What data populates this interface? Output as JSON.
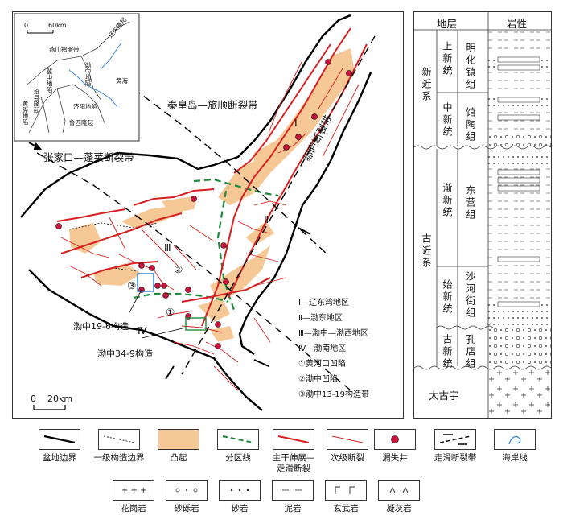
{
  "map": {
    "inset": {
      "scale_zero": "0",
      "scale_end": "60km",
      "regions": [
        "燕山褶皱带",
        "辽东隆起",
        "渤中地陷",
        "黄海",
        "济阳地陷",
        "鲁西隆起",
        "冀中地陷",
        "沧县隆起",
        "黄骅地陷"
      ]
    },
    "fault_labels": {
      "qinhuangdao": "秦皇岛—旅顺断裂带",
      "zhangjiakou": "张家口—蓬莱断裂带",
      "tanlu": "郯庐断裂带"
    },
    "region_numerals": {
      "r1": "Ⅰ",
      "r2": "Ⅱ",
      "r3": "Ⅲ",
      "r4": "Ⅳ"
    },
    "area_numerals": {
      "a1": "①",
      "a2": "②",
      "a3": "③"
    },
    "structures": {
      "s1": "渤中19-6构造",
      "s2": "渤中34-9构造"
    },
    "area_legend": [
      "Ⅰ—辽东湾地区",
      "Ⅱ—渤东地区",
      "Ⅲ—渤中—渤西地区",
      "Ⅳ—渤南地区",
      "①黄河口凹陷",
      "②渤中凹陷",
      "③渤中13-19构造带"
    ],
    "scale": {
      "zero": "0",
      "end": "20km"
    }
  },
  "strat": {
    "header": {
      "strata": "地层",
      "lithology": "岩性"
    },
    "systems": {
      "neogene": "新近系",
      "paleogene": "古近系",
      "archean": "太古宇"
    },
    "series": {
      "upper_neo": "上新统",
      "mid_neo": "中新统",
      "oligocene": "渐新统",
      "eocene": "始新统",
      "paleocene": "古新统"
    },
    "formations": {
      "minghuazhen": "明化镇组",
      "guantao": "馆陶组",
      "dongying": "东营组",
      "shahejie": "沙河街组",
      "kongdian": "孔店组"
    }
  },
  "legend": {
    "row1": [
      "盆地边界",
      "一级构造边界",
      "凸起",
      "分区线",
      "主干伸展—走滑断裂",
      "次级断裂",
      "漏失井",
      "走滑断裂带",
      "海岸线"
    ],
    "row2": [
      "花岗岩",
      "砂砾岩",
      "砂岩",
      "泥岩",
      "玄武岩",
      "凝灰岩"
    ]
  },
  "colors": {
    "uplift": "#f6c896",
    "fault": "#d62020",
    "well": "#c8143c",
    "zone_line": "#1f8a3c",
    "coast": "#2b7fd6"
  }
}
